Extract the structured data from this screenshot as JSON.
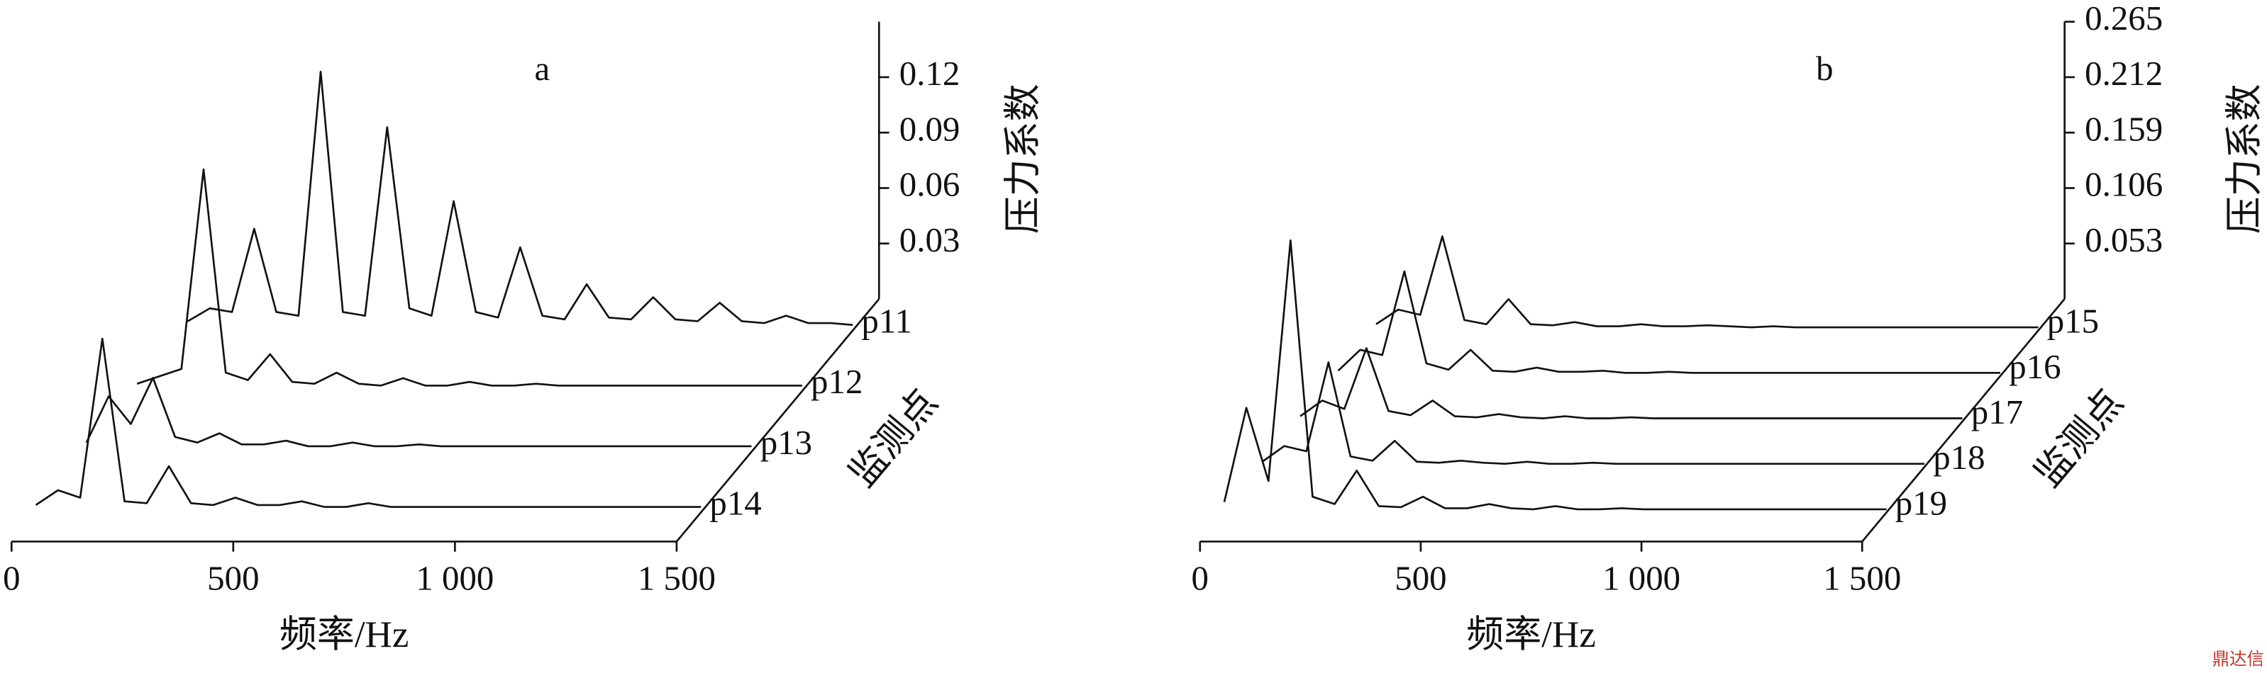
{
  "chart_data": [
    {
      "type": "waterfall",
      "title": "a",
      "xlabel": "频率/Hz",
      "zlabel": "压力系数",
      "depth_label": "监测点",
      "xlim": [
        0,
        1500
      ],
      "xticks": [
        0,
        500,
        {
          "value": 1000,
          "label": "1 000"
        },
        {
          "value": 1500,
          "label": "1 500"
        }
      ],
      "zlim": [
        0,
        0.15
      ],
      "zticks": [
        0.03,
        0.06,
        0.09,
        0.12
      ],
      "x": [
        0,
        50,
        100,
        150,
        200,
        250,
        300,
        350,
        400,
        450,
        500,
        550,
        600,
        650,
        700,
        750,
        800,
        850,
        900,
        950,
        1000,
        1050,
        1100,
        1150,
        1200,
        1250,
        1300,
        1350,
        1400,
        1450,
        1500
      ],
      "series": [
        {
          "name": "p11",
          "color": "#111111",
          "values": [
            0.005,
            0.012,
            0.01,
            0.055,
            0.01,
            0.008,
            0.14,
            0.01,
            0.008,
            0.11,
            0.012,
            0.008,
            0.07,
            0.01,
            0.007,
            0.045,
            0.008,
            0.006,
            0.025,
            0.007,
            0.006,
            0.018,
            0.006,
            0.005,
            0.015,
            0.005,
            0.004,
            0.008,
            0.004,
            0.004,
            0.003
          ]
        },
        {
          "name": "p12",
          "color": "#111111",
          "values": [
            0.004,
            0.008,
            0.012,
            0.12,
            0.01,
            0.006,
            0.02,
            0.005,
            0.004,
            0.01,
            0.004,
            0.003,
            0.007,
            0.003,
            0.003,
            0.005,
            0.003,
            0.003,
            0.004,
            0.003,
            0.003,
            0.003,
            0.003,
            0.003,
            0.003,
            0.003,
            0.003,
            0.003,
            0.003,
            0.003,
            0.003
          ]
        },
        {
          "name": "p13",
          "color": "#111111",
          "values": [
            0.005,
            0.03,
            0.015,
            0.04,
            0.008,
            0.005,
            0.01,
            0.004,
            0.004,
            0.006,
            0.003,
            0.003,
            0.005,
            0.003,
            0.003,
            0.004,
            0.003,
            0.003,
            0.003,
            0.003,
            0.003,
            0.003,
            0.003,
            0.003,
            0.003,
            0.003,
            0.003,
            0.003,
            0.003,
            0.003,
            0.003
          ]
        },
        {
          "name": "p14",
          "color": "#111111",
          "values": [
            0.004,
            0.012,
            0.008,
            0.094,
            0.006,
            0.005,
            0.025,
            0.005,
            0.004,
            0.008,
            0.004,
            0.004,
            0.006,
            0.003,
            0.003,
            0.005,
            0.003,
            0.003,
            0.003,
            0.003,
            0.003,
            0.003,
            0.003,
            0.003,
            0.003,
            0.003,
            0.003,
            0.003,
            0.003,
            0.003,
            0.003
          ]
        }
      ]
    },
    {
      "type": "waterfall",
      "title": "b",
      "xlabel": "频率/Hz",
      "zlabel": "压力系数",
      "depth_label": "监测点",
      "xlim": [
        0,
        1500
      ],
      "xticks": [
        0,
        500,
        {
          "value": 1000,
          "label": "1 000"
        },
        {
          "value": 1500,
          "label": "1 500"
        }
      ],
      "zlim": [
        0,
        0.265
      ],
      "zticks": [
        0.053,
        0.106,
        0.159,
        0.212,
        0.265
      ],
      "x": [
        0,
        50,
        100,
        150,
        200,
        250,
        300,
        350,
        400,
        450,
        500,
        550,
        600,
        650,
        700,
        750,
        800,
        850,
        900,
        950,
        1000,
        1050,
        1100,
        1150,
        1200,
        1250,
        1300,
        1350,
        1400,
        1450,
        1500
      ],
      "series": [
        {
          "name": "p15",
          "color": "#111111",
          "values": [
            0.006,
            0.02,
            0.015,
            0.09,
            0.01,
            0.006,
            0.03,
            0.006,
            0.005,
            0.008,
            0.004,
            0.004,
            0.006,
            0.004,
            0.004,
            0.005,
            0.004,
            0.003,
            0.004,
            0.003,
            0.003,
            0.003,
            0.003,
            0.003,
            0.003,
            0.003,
            0.003,
            0.003,
            0.003,
            0.003,
            0.003
          ]
        },
        {
          "name": "p16",
          "color": "#111111",
          "values": [
            0.005,
            0.025,
            0.02,
            0.1,
            0.012,
            0.006,
            0.025,
            0.005,
            0.004,
            0.008,
            0.004,
            0.004,
            0.005,
            0.003,
            0.003,
            0.004,
            0.003,
            0.003,
            0.003,
            0.003,
            0.003,
            0.003,
            0.003,
            0.003,
            0.003,
            0.003,
            0.003,
            0.003,
            0.003,
            0.003,
            0.003
          ]
        },
        {
          "name": "p17",
          "color": "#111111",
          "values": [
            0.005,
            0.02,
            0.012,
            0.07,
            0.01,
            0.006,
            0.02,
            0.005,
            0.004,
            0.007,
            0.004,
            0.003,
            0.005,
            0.003,
            0.003,
            0.004,
            0.003,
            0.003,
            0.003,
            0.003,
            0.003,
            0.003,
            0.003,
            0.003,
            0.003,
            0.003,
            0.003,
            0.003,
            0.003,
            0.003,
            0.003
          ]
        },
        {
          "name": "p18",
          "color": "#111111",
          "values": [
            0.005,
            0.02,
            0.015,
            0.1,
            0.01,
            0.006,
            0.025,
            0.005,
            0.004,
            0.006,
            0.004,
            0.003,
            0.005,
            0.003,
            0.003,
            0.004,
            0.003,
            0.003,
            0.003,
            0.003,
            0.003,
            0.003,
            0.003,
            0.003,
            0.003,
            0.003,
            0.003,
            0.003,
            0.003,
            0.003,
            0.003
          ]
        },
        {
          "name": "p19",
          "color": "#111111",
          "values": [
            0.01,
            0.1,
            0.03,
            0.26,
            0.015,
            0.008,
            0.04,
            0.006,
            0.005,
            0.015,
            0.004,
            0.004,
            0.008,
            0.004,
            0.003,
            0.006,
            0.003,
            0.003,
            0.004,
            0.003,
            0.003,
            0.003,
            0.003,
            0.003,
            0.003,
            0.003,
            0.003,
            0.003,
            0.003,
            0.003,
            0.003
          ]
        }
      ]
    }
  ],
  "watermark": "鼎达信"
}
